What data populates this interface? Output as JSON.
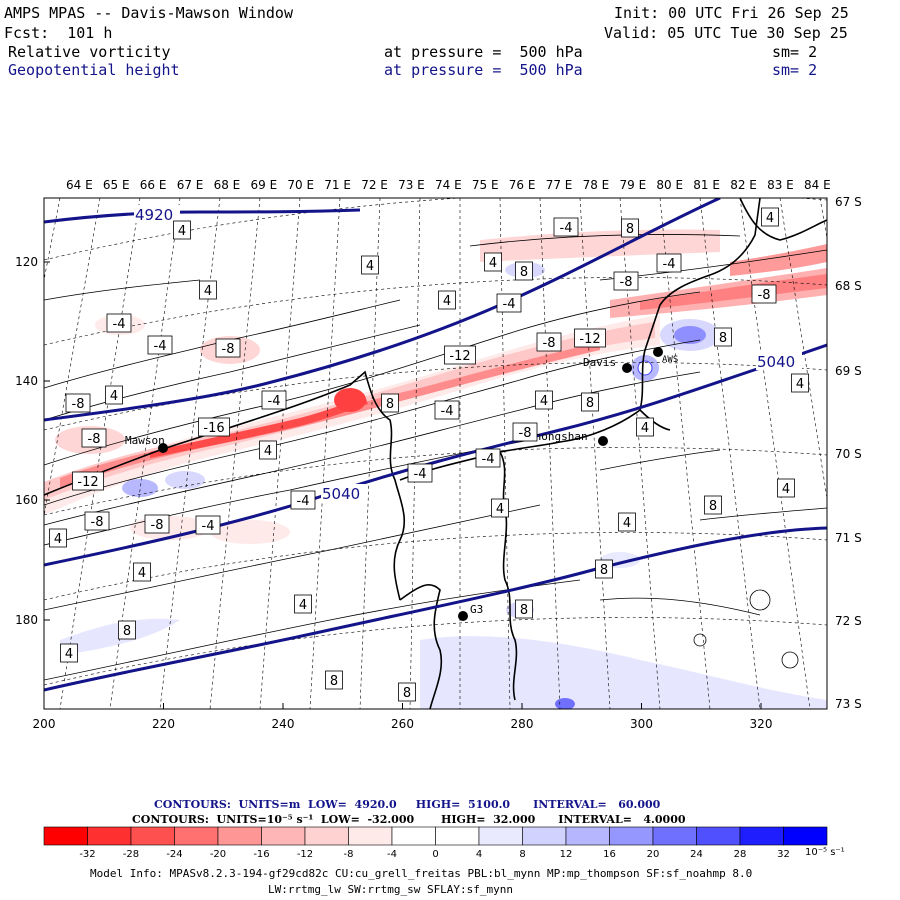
{
  "header": {
    "title": "AMPS MPAS -- Davis-Mawson Window",
    "fcst": "Fcst:  101 h",
    "init": "Init: 00 UTC Fri 26 Sep 25",
    "valid": "Valid: 05 UTC Tue 30 Sep 25",
    "field1": {
      "name": "Relative vorticity",
      "level": "at pressure =  500 hPa",
      "sm": "sm= 2"
    },
    "field2": {
      "name": "Geopotential height",
      "level": "at pressure =  500 hPa",
      "sm": "sm= 2"
    }
  },
  "map": {
    "lon_labels": [
      "64 E",
      "65 E",
      "66 E",
      "67 E",
      "68 E",
      "69 E",
      "70 E",
      "71 E",
      "72 E",
      "73 E",
      "74 E",
      "75 E",
      "76 E",
      "77 E",
      "78 E",
      "79 E",
      "80 E",
      "81 E",
      "82 E",
      "83 E",
      "84 E"
    ],
    "lat_labels": [
      "67 S",
      "68 S",
      "69 S",
      "70 S",
      "71 S",
      "72 S",
      "73 S"
    ],
    "x_ticks": [
      "200",
      "220",
      "240",
      "260",
      "280",
      "300",
      "320"
    ],
    "y_ticks": [
      "120",
      "140",
      "160",
      "180"
    ],
    "stations": [
      {
        "name": "Davis"
      },
      {
        "name": "Mawson"
      },
      {
        "name": "Zhongshan"
      },
      {
        "name": "G3"
      },
      {
        "name": "AWS"
      }
    ],
    "height_contour_labels": [
      "4920",
      "5040",
      "5040"
    ],
    "vort_labels": [
      "4",
      "-4",
      "8",
      "-8",
      "-12",
      "-16"
    ]
  },
  "contours_info": {
    "line1": "CONTOURS:  UNITS=m  LOW=  4920.0     HIGH=  5100.0      INTERVAL=   60.000",
    "line2": "CONTOURS:  UNITS=10⁻⁵ s⁻¹  LOW=  -32.000       HIGH=  32.000      INTERVAL=   4.0000"
  },
  "colorbar": {
    "labels": [
      "-32",
      "-28",
      "-24",
      "-20",
      "-16",
      "-12",
      "-8",
      "-4",
      "0",
      "4",
      "8",
      "12",
      "16",
      "20",
      "24",
      "28",
      "32"
    ],
    "unit": "10⁻⁵ s⁻¹",
    "colors": [
      "#ff0000",
      "#ff3030",
      "#ff5050",
      "#ff7070",
      "#ff9696",
      "#ffb6b6",
      "#ffd2d2",
      "#ffeaea",
      "#ffffff",
      "#ffffff",
      "#eaeaff",
      "#d2d2ff",
      "#b6b6ff",
      "#9696ff",
      "#7070ff",
      "#5050ff",
      "#1e1eff",
      "#0000ff"
    ]
  },
  "footer": {
    "line1": "Model Info: MPASv8.2.3-194-gf29cd82c CU:cu_grell_freitas PBL:bl_mynn MP:mp_thompson SF:sf_noahmp 8.0",
    "line2": "LW:rrtmg_lw SW:rrtmg_sw SFLAY:sf_mynn"
  }
}
